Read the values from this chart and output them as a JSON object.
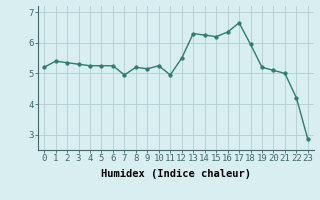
{
  "x": [
    0,
    1,
    2,
    3,
    4,
    5,
    6,
    7,
    8,
    9,
    10,
    11,
    12,
    13,
    14,
    15,
    16,
    17,
    18,
    19,
    20,
    21,
    22,
    23
  ],
  "y": [
    5.2,
    5.4,
    5.35,
    5.3,
    5.25,
    5.25,
    5.25,
    4.95,
    5.2,
    5.15,
    5.25,
    4.95,
    5.5,
    6.3,
    6.25,
    6.2,
    6.35,
    6.65,
    5.95,
    5.2,
    5.1,
    5.0,
    4.2,
    2.85
  ],
  "line_color": "#2e7d6e",
  "marker": "o",
  "markersize": 2.5,
  "linewidth": 1.0,
  "xlabel": "Humidex (Indice chaleur)",
  "ylim": [
    2.5,
    7.2
  ],
  "xlim": [
    -0.5,
    23.5
  ],
  "yticks": [
    3,
    4,
    5,
    6,
    7
  ],
  "xticks": [
    0,
    1,
    2,
    3,
    4,
    5,
    6,
    7,
    8,
    9,
    10,
    11,
    12,
    13,
    14,
    15,
    16,
    17,
    18,
    19,
    20,
    21,
    22,
    23
  ],
  "grid_color": "#b0d0d0",
  "bg_color": "#d8eef0",
  "xlabel_fontsize": 7.5,
  "tick_fontsize": 6.5,
  "spine_color": "#3d6b6b"
}
